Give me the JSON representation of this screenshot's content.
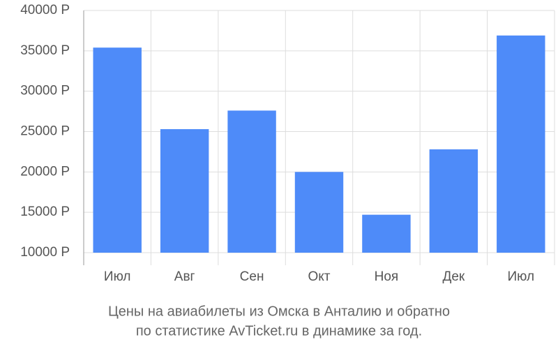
{
  "chart_data": {
    "type": "bar",
    "title": "Цены на авиабилеты из Омска в Анталию и обратно",
    "subtitle": "по статистике AvTicket.ru в динамике за год.",
    "categories": [
      "Июл",
      "Авг",
      "Сен",
      "Окт",
      "Ноя",
      "Дек",
      "Июл"
    ],
    "values": [
      35400,
      25300,
      27600,
      20000,
      14700,
      22800,
      36900
    ],
    "color": "#4e8bf9",
    "ylim": [
      10000,
      40000
    ],
    "yticks": [
      {
        "value": 10000,
        "label": "10000 Р"
      },
      {
        "value": 15000,
        "label": "15000 Р"
      },
      {
        "value": 20000,
        "label": "20000 Р"
      },
      {
        "value": 25000,
        "label": "25000 Р"
      },
      {
        "value": 30000,
        "label": "30000 Р"
      },
      {
        "value": 35000,
        "label": "35000 Р"
      },
      {
        "value": 40000,
        "label": "40000 Р"
      }
    ],
    "grid": true
  }
}
